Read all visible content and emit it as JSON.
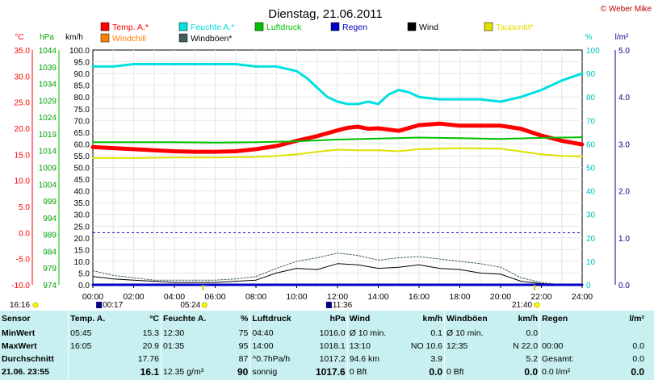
{
  "title": "Dienstag, 21.06.2011",
  "credit": "© Weber Mike",
  "legend": [
    {
      "label": "Temp. A.*",
      "color": "#ff0000"
    },
    {
      "label": "Feuchte A.*",
      "color": "#00e0e0"
    },
    {
      "label": "Luftdruck",
      "color": "#00c000"
    },
    {
      "label": "Regen",
      "color": "#0000c0"
    },
    {
      "label": "Wind",
      "color": "#000000"
    },
    {
      "label": "Taupunkt*",
      "color": "#e0e000"
    },
    {
      "label": "Windchill",
      "color": "#ff8000"
    },
    {
      "label": "Windböen*",
      "color": "#406060"
    }
  ],
  "axes": {
    "temp": {
      "unit": "°C",
      "ticks": [
        "35.0",
        "30.0",
        "25.0",
        "20.0",
        "15.0",
        "10.0",
        "5.0",
        "0.0",
        "-5.0",
        "-10.0"
      ],
      "color": "#ff0000"
    },
    "press": {
      "unit": "hPa",
      "ticks": [
        "1044",
        "1039",
        "1034",
        "1029",
        "1024",
        "1019",
        "1014",
        "1009",
        "1004",
        "999",
        "994",
        "989",
        "984",
        "979",
        "974"
      ],
      "color": "#00a000"
    },
    "wind": {
      "unit": "km/h",
      "ticks": [
        "100.0",
        "95.0",
        "90.0",
        "85.0",
        "80.0",
        "75.0",
        "70.0",
        "65.0",
        "60.0",
        "55.0",
        "50.0",
        "45.0",
        "40.0",
        "35.0",
        "30.0",
        "25.0",
        "20.0",
        "15.0",
        "10.0",
        "5.0",
        "0.0"
      ],
      "color": "#000000"
    },
    "hum": {
      "unit": "%",
      "ticks": [
        "100",
        "90",
        "80",
        "70",
        "60",
        "50",
        "40",
        "30",
        "20",
        "10",
        "0"
      ],
      "color": "#00c0c0"
    },
    "rain": {
      "unit": "l/m²",
      "ticks": [
        "5.0",
        "4.0",
        "3.0",
        "2.0",
        "1.0",
        "0.0"
      ],
      "color": "#000080"
    },
    "time_ticks": [
      "00:00",
      "02:00",
      "04:00",
      "06:00",
      "08:00",
      "10:00",
      "12:00",
      "14:00",
      "16:00",
      "18:00",
      "20:00",
      "22:00",
      "24:00"
    ]
  },
  "sun_moon": {
    "moonset": "16:16",
    "moonrise": "00:17",
    "sunrise": "05:24",
    "noon": "11:36",
    "sunset": "21:40"
  },
  "chart_data": {
    "type": "line",
    "x_unit": "hours",
    "x_range": [
      0,
      24
    ],
    "series": [
      {
        "name": "Temp. A.*",
        "axis": "temp",
        "color": "#ff0000",
        "x": [
          0,
          1,
          2,
          3,
          4,
          5,
          6,
          7,
          8,
          9,
          10,
          11,
          12,
          12.5,
          13,
          13.5,
          14,
          15,
          16,
          17,
          18,
          19,
          20,
          21,
          22,
          23,
          24
        ],
        "y": [
          16.4,
          16.2,
          16.0,
          15.8,
          15.6,
          15.5,
          15.5,
          15.6,
          16.0,
          16.6,
          17.6,
          18.5,
          19.6,
          20.1,
          20.3,
          19.9,
          20.0,
          19.5,
          20.6,
          20.9,
          20.5,
          20.5,
          20.5,
          19.9,
          18.6,
          17.6,
          16.9
        ]
      },
      {
        "name": "Feuchte A.*",
        "axis": "hum",
        "color": "#00e0e0",
        "x": [
          0,
          1,
          2,
          3,
          4,
          5,
          6,
          7,
          8,
          9,
          10,
          10.5,
          11,
          11.5,
          12,
          12.5,
          13,
          13.5,
          14,
          14.5,
          15,
          15.5,
          16,
          17,
          18,
          19,
          20,
          20.5,
          21,
          22,
          23,
          24
        ],
        "y": [
          93,
          93,
          94,
          94,
          94,
          94,
          94,
          94,
          93,
          93,
          91,
          88,
          84,
          80,
          78,
          77,
          77,
          78,
          77,
          81,
          83,
          82,
          80,
          79,
          79,
          79,
          78,
          79,
          80,
          83,
          87,
          90
        ]
      },
      {
        "name": "Luftdruck",
        "axis": "press",
        "color": "#00c000",
        "x": [
          0,
          2,
          4,
          6,
          8,
          10,
          12,
          14,
          16,
          18,
          20,
          22,
          24
        ],
        "y": [
          1016.5,
          1016.5,
          1016.5,
          1016.4,
          1016.5,
          1016.8,
          1017.3,
          1017.6,
          1017.9,
          1017.7,
          1017.5,
          1017.8,
          1018.0
        ]
      },
      {
        "name": "Taupunkt*",
        "axis": "temp",
        "color": "#e0e000",
        "x": [
          0,
          2,
          4,
          6,
          8,
          9,
          10,
          11,
          12,
          13,
          14,
          15,
          16,
          18,
          20,
          22,
          23,
          24
        ],
        "y": [
          14.3,
          14.3,
          14.4,
          14.4,
          14.5,
          14.7,
          15.0,
          15.5,
          15.9,
          15.8,
          15.8,
          15.6,
          16.0,
          16.2,
          16.1,
          15.0,
          14.7,
          14.6
        ]
      },
      {
        "name": "Wind",
        "axis": "wind",
        "color": "#000000",
        "x": [
          0,
          1,
          2,
          3,
          4,
          5,
          6,
          7,
          8,
          9,
          10,
          11,
          12,
          13,
          14,
          15,
          16,
          17,
          18,
          19,
          20,
          21,
          22,
          23,
          24
        ],
        "y": [
          3.5,
          2.5,
          2.0,
          1.5,
          1.0,
          1.0,
          1.0,
          1.5,
          2.0,
          5.0,
          7.0,
          6.5,
          9.0,
          8.5,
          7.0,
          7.5,
          8.5,
          7.0,
          6.5,
          5.0,
          4.5,
          1.5,
          0.5,
          0.0,
          0.0
        ]
      },
      {
        "name": "Windböen*",
        "axis": "wind",
        "color": "#406060",
        "x": [
          0,
          1,
          2,
          3,
          4,
          5,
          6,
          7,
          8,
          9,
          10,
          11,
          12,
          13,
          14,
          15,
          16,
          17,
          18,
          19,
          20,
          21,
          22,
          23,
          24
        ],
        "y": [
          6.0,
          4.0,
          3.0,
          2.0,
          2.0,
          2.0,
          2.0,
          2.5,
          3.5,
          7.0,
          10.0,
          11.5,
          13.5,
          12.5,
          10.5,
          11.5,
          12.0,
          11.0,
          10.0,
          9.0,
          7.5,
          3.0,
          1.0,
          0.0,
          0.0
        ]
      },
      {
        "name": "Regen",
        "axis": "rain",
        "color": "#0000c0",
        "x": [
          0,
          24
        ],
        "y": [
          0.0,
          0.0
        ]
      }
    ]
  },
  "stats": {
    "header": [
      "Sensor",
      "Temp. A.",
      "°C",
      "Feuchte A.",
      "%",
      "Luftdruck",
      "hPa",
      "Wind",
      "km/h",
      "Windböen",
      "km/h",
      "Regen",
      "l/m²"
    ],
    "rows": [
      [
        "MinWert",
        "05:45",
        "15.3",
        "12:30",
        "75",
        "04:40",
        "1016.0",
        "Ø 10 min.",
        "0.1",
        "Ø 10 min.",
        "0.0",
        "",
        ""
      ],
      [
        "MaxWert",
        "16:05",
        "20.9",
        "01:35",
        "95",
        "14:00",
        "1018.1",
        "13:10",
        "NO 10.6",
        "12:35",
        "N 22.0",
        "00:00",
        "0.0"
      ],
      [
        "Durchschnitt",
        "",
        "17.76",
        "",
        "87",
        "^0.7hPa/h",
        "1017.2",
        "94.6 km",
        "3.9",
        "",
        "5.2",
        "Gesamt:",
        "0.0"
      ],
      [
        "21.06. 23:55",
        "",
        "16.1",
        "12.35 g/m³",
        "90",
        "sonnig",
        "1017.6",
        "0 Bft",
        "0.0",
        "0 Bft",
        "0.0",
        "0.0 l/m²",
        "0.0"
      ]
    ]
  }
}
